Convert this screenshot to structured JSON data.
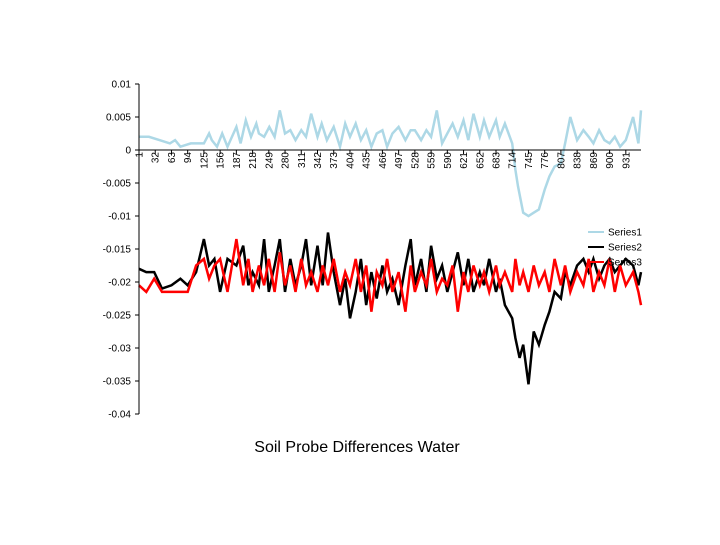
{
  "chart_data": {
    "type": "line",
    "title": "Soil Probe Differences Water",
    "xlabel": "",
    "ylabel": "",
    "ylim": [
      -0.04,
      0.01
    ],
    "y_ticks": [
      "0.01",
      "0.005",
      "0",
      "-0.005",
      "-0.01",
      "-0.015",
      "-0.02",
      "-0.025",
      "-0.03",
      "-0.035",
      "-0.04"
    ],
    "y_tick_values": [
      0.01,
      0.005,
      0,
      -0.005,
      -0.01,
      -0.015,
      -0.02,
      -0.025,
      -0.03,
      -0.035,
      -0.04
    ],
    "x_ticks": [
      "1",
      "32",
      "63",
      "94",
      "125",
      "156",
      "187",
      "218",
      "249",
      "280",
      "311",
      "342",
      "373",
      "404",
      "435",
      "466",
      "497",
      "528",
      "559",
      "590",
      "621",
      "652",
      "683",
      "714",
      "745",
      "776",
      "807",
      "838",
      "869",
      "900",
      "931"
    ],
    "x_range": [
      1,
      960
    ],
    "legend_position": "right",
    "series": [
      {
        "name": "Series1",
        "color": "#add8e6",
        "x": [
          1,
          20,
          40,
          60,
          70,
          80,
          100,
          125,
          135,
          140,
          150,
          160,
          170,
          187,
          195,
          205,
          215,
          225,
          230,
          240,
          250,
          260,
          270,
          280,
          290,
          300,
          311,
          320,
          330,
          342,
          350,
          360,
          373,
          385,
          395,
          404,
          415,
          425,
          435,
          445,
          455,
          466,
          475,
          485,
          497,
          510,
          520,
          528,
          540,
          550,
          559,
          570,
          580,
          590,
          600,
          610,
          621,
          630,
          640,
          652,
          660,
          670,
          683,
          690,
          700,
          714,
          720,
          725,
          730,
          735,
          745,
          755,
          765,
          776,
          785,
          795,
          807,
          815,
          825,
          838,
          850,
          860,
          869,
          880,
          890,
          900,
          910,
          920,
          931,
          945,
          955,
          960
        ],
        "values": [
          0.002,
          0.002,
          0.0015,
          0.001,
          0.0015,
          0.0005,
          0.001,
          0.001,
          0.0025,
          0.0015,
          0.0005,
          0.0025,
          0.0005,
          0.0035,
          0.001,
          0.0045,
          0.002,
          0.004,
          0.0025,
          0.002,
          0.0035,
          0.002,
          0.006,
          0.0025,
          0.003,
          0.0015,
          0.003,
          0.002,
          0.0055,
          0.002,
          0.004,
          0.0015,
          0.0035,
          0.0005,
          0.004,
          0.002,
          0.004,
          0.0015,
          0.003,
          0.0005,
          0.0025,
          0.003,
          0.0005,
          0.0025,
          0.0035,
          0.0015,
          0.003,
          0.003,
          0.0015,
          0.003,
          0.002,
          0.006,
          0.001,
          0.0025,
          0.004,
          0.002,
          0.0045,
          0.0015,
          0.0055,
          0.002,
          0.0045,
          0.002,
          0.0045,
          0.002,
          0.004,
          0.001,
          -0.003,
          -0.0055,
          -0.0075,
          -0.0095,
          -0.01,
          -0.0095,
          -0.009,
          -0.006,
          -0.004,
          -0.0025,
          -0.002,
          0.001,
          0.005,
          0.0015,
          0.003,
          0.002,
          0.001,
          0.003,
          0.0015,
          0.001,
          0.002,
          0.0005,
          0.0015,
          0.005,
          0.001,
          0.006
        ]
      },
      {
        "name": "Series2",
        "color": "#000000",
        "x": [
          1,
          15,
          30,
          45,
          63,
          80,
          94,
          110,
          125,
          135,
          145,
          156,
          170,
          187,
          200,
          210,
          218,
          230,
          240,
          249,
          260,
          270,
          280,
          290,
          300,
          311,
          320,
          330,
          342,
          352,
          362,
          373,
          385,
          395,
          404,
          415,
          425,
          435,
          445,
          455,
          466,
          475,
          485,
          497,
          510,
          520,
          528,
          540,
          550,
          559,
          570,
          580,
          590,
          600,
          610,
          621,
          630,
          640,
          652,
          660,
          670,
          683,
          690,
          700,
          714,
          720,
          728,
          735,
          745,
          755,
          765,
          776,
          785,
          795,
          807,
          815,
          825,
          838,
          850,
          860,
          869,
          880,
          890,
          900,
          910,
          920,
          931,
          945,
          955,
          960
        ],
        "values": [
          -0.018,
          -0.0185,
          -0.0185,
          -0.021,
          -0.0205,
          -0.0195,
          -0.0205,
          -0.0185,
          -0.0135,
          -0.0175,
          -0.0165,
          -0.0215,
          -0.0165,
          -0.0175,
          -0.0145,
          -0.0205,
          -0.0185,
          -0.0205,
          -0.0135,
          -0.0215,
          -0.0175,
          -0.0135,
          -0.0215,
          -0.0165,
          -0.0205,
          -0.0175,
          -0.0135,
          -0.0205,
          -0.0145,
          -0.0205,
          -0.0125,
          -0.0185,
          -0.0235,
          -0.0195,
          -0.0255,
          -0.0215,
          -0.0165,
          -0.0235,
          -0.0185,
          -0.0225,
          -0.0175,
          -0.0215,
          -0.0195,
          -0.0235,
          -0.0175,
          -0.0135,
          -0.0205,
          -0.0165,
          -0.0215,
          -0.0145,
          -0.0195,
          -0.0175,
          -0.0215,
          -0.0185,
          -0.0155,
          -0.0205,
          -0.0165,
          -0.0215,
          -0.0185,
          -0.0205,
          -0.0165,
          -0.0215,
          -0.0195,
          -0.0235,
          -0.0255,
          -0.0285,
          -0.0315,
          -0.0295,
          -0.0355,
          -0.0275,
          -0.0295,
          -0.0265,
          -0.0245,
          -0.0215,
          -0.0225,
          -0.0185,
          -0.0205,
          -0.0175,
          -0.0165,
          -0.0185,
          -0.0165,
          -0.0195,
          -0.0175,
          -0.0165,
          -0.0185,
          -0.0175,
          -0.0165,
          -0.0175,
          -0.0205,
          -0.0185
        ]
      },
      {
        "name": "Series3",
        "color": "#ff0000",
        "x": [
          1,
          15,
          30,
          45,
          63,
          80,
          94,
          110,
          125,
          135,
          145,
          156,
          170,
          187,
          200,
          210,
          218,
          230,
          240,
          249,
          260,
          270,
          280,
          290,
          300,
          311,
          320,
          330,
          342,
          352,
          362,
          373,
          385,
          395,
          404,
          415,
          425,
          435,
          445,
          455,
          466,
          475,
          485,
          497,
          510,
          520,
          528,
          540,
          550,
          559,
          570,
          580,
          590,
          600,
          610,
          621,
          630,
          640,
          652,
          660,
          670,
          683,
          690,
          700,
          714,
          720,
          728,
          735,
          745,
          755,
          765,
          776,
          785,
          795,
          807,
          815,
          825,
          838,
          850,
          860,
          869,
          880,
          890,
          900,
          910,
          920,
          931,
          945,
          955,
          960
        ],
        "values": [
          -0.0205,
          -0.0215,
          -0.0195,
          -0.0215,
          -0.0215,
          -0.0215,
          -0.0215,
          -0.0175,
          -0.0165,
          -0.0195,
          -0.0175,
          -0.0165,
          -0.0215,
          -0.0135,
          -0.0205,
          -0.0165,
          -0.0215,
          -0.0175,
          -0.0205,
          -0.0165,
          -0.0215,
          -0.0155,
          -0.0205,
          -0.0175,
          -0.0215,
          -0.0165,
          -0.0205,
          -0.0185,
          -0.0215,
          -0.0175,
          -0.0205,
          -0.0165,
          -0.0215,
          -0.0185,
          -0.0205,
          -0.0165,
          -0.0215,
          -0.0175,
          -0.0245,
          -0.0185,
          -0.0205,
          -0.0165,
          -0.0215,
          -0.0185,
          -0.0245,
          -0.0175,
          -0.0215,
          -0.0185,
          -0.0205,
          -0.0165,
          -0.0215,
          -0.0195,
          -0.0205,
          -0.0175,
          -0.0245,
          -0.0185,
          -0.0215,
          -0.0175,
          -0.0205,
          -0.0185,
          -0.0215,
          -0.0175,
          -0.0205,
          -0.0185,
          -0.0215,
          -0.0165,
          -0.0205,
          -0.0185,
          -0.0215,
          -0.0175,
          -0.0205,
          -0.0185,
          -0.0215,
          -0.0165,
          -0.0205,
          -0.0175,
          -0.0215,
          -0.0185,
          -0.0205,
          -0.0165,
          -0.0215,
          -0.0185,
          -0.0205,
          -0.0165,
          -0.0215,
          -0.0175,
          -0.0205,
          -0.0185,
          -0.0215,
          -0.0235
        ]
      }
    ]
  }
}
